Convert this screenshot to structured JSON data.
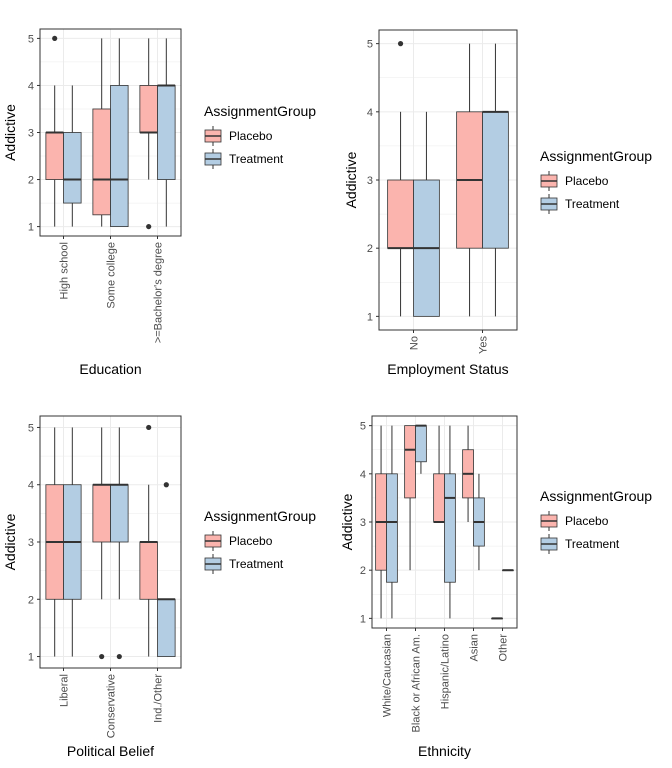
{
  "colors": {
    "placebo": "#FBB4AE",
    "treatment": "#B3CDE3",
    "grid": "#ebebeb",
    "border": "#333333"
  },
  "chart_data": [
    {
      "type": "boxplot",
      "xlabel": "Education",
      "ylabel": "Addictive",
      "ylim": [
        1,
        5
      ],
      "yticks": [
        1,
        2,
        3,
        4,
        5
      ],
      "categories": [
        "High school",
        "Some college",
        ">=Bachelor's degree"
      ],
      "legend": {
        "title": "AssignmentGroup",
        "entries": [
          "Placebo",
          "Treatment"
        ]
      },
      "series": [
        {
          "name": "Placebo",
          "boxes": [
            {
              "min": 1,
              "q1": 2,
              "median": 3,
              "q3": 3,
              "max": 4,
              "outliers": [
                5
              ]
            },
            {
              "min": 1,
              "q1": 1.25,
              "median": 2,
              "q3": 3.5,
              "max": 5,
              "outliers": []
            },
            {
              "min": 2,
              "q1": 3,
              "median": 3,
              "q3": 4,
              "max": 5,
              "outliers": [
                1
              ]
            }
          ]
        },
        {
          "name": "Treatment",
          "boxes": [
            {
              "min": 1,
              "q1": 1.5,
              "median": 2,
              "q3": 3,
              "max": 4,
              "outliers": []
            },
            {
              "min": 1,
              "q1": 1,
              "median": 2,
              "q3": 4,
              "max": 5,
              "outliers": []
            },
            {
              "min": 1,
              "q1": 2,
              "median": 4,
              "q3": 4,
              "max": 5,
              "outliers": []
            }
          ]
        }
      ]
    },
    {
      "type": "boxplot",
      "xlabel": "Employment Status",
      "ylabel": "Addictive",
      "ylim": [
        1,
        5
      ],
      "yticks": [
        1,
        2,
        3,
        4,
        5
      ],
      "categories": [
        "No",
        "Yes"
      ],
      "legend": {
        "title": "AssignmentGroup",
        "entries": [
          "Placebo",
          "Treatment"
        ]
      },
      "series": [
        {
          "name": "Placebo",
          "boxes": [
            {
              "min": 1,
              "q1": 2,
              "median": 2,
              "q3": 3,
              "max": 4,
              "outliers": [
                5
              ]
            },
            {
              "min": 1,
              "q1": 2,
              "median": 3,
              "q3": 4,
              "max": 5,
              "outliers": []
            }
          ]
        },
        {
          "name": "Treatment",
          "boxes": [
            {
              "min": 1,
              "q1": 1,
              "median": 2,
              "q3": 3,
              "max": 4,
              "outliers": []
            },
            {
              "min": 1,
              "q1": 2,
              "median": 4,
              "q3": 4,
              "max": 5,
              "outliers": []
            }
          ]
        }
      ]
    },
    {
      "type": "boxplot",
      "xlabel": "Political Belief",
      "ylabel": "Addictive",
      "ylim": [
        1,
        5
      ],
      "yticks": [
        1,
        2,
        3,
        4,
        5
      ],
      "categories": [
        "Liberal",
        "Conservative",
        "Ind./Other"
      ],
      "legend": {
        "title": "AssignmentGroup",
        "entries": [
          "Placebo",
          "Treatment"
        ]
      },
      "series": [
        {
          "name": "Placebo",
          "boxes": [
            {
              "min": 1,
              "q1": 2,
              "median": 3,
              "q3": 4,
              "max": 5,
              "outliers": []
            },
            {
              "min": 2,
              "q1": 3,
              "median": 4,
              "q3": 4,
              "max": 5,
              "outliers": [
                1
              ]
            },
            {
              "min": 1,
              "q1": 2,
              "median": 3,
              "q3": 3,
              "max": 4,
              "outliers": [
                5
              ]
            }
          ]
        },
        {
          "name": "Treatment",
          "boxes": [
            {
              "min": 1,
              "q1": 2,
              "median": 3,
              "q3": 4,
              "max": 5,
              "outliers": []
            },
            {
              "min": 2,
              "q1": 3,
              "median": 4,
              "q3": 4,
              "max": 5,
              "outliers": [
                1
              ]
            },
            {
              "min": 1,
              "q1": 1,
              "median": 2,
              "q3": 2,
              "max": 2,
              "outliers": [
                4
              ]
            }
          ]
        }
      ]
    },
    {
      "type": "boxplot",
      "xlabel": "Ethnicity",
      "ylabel": "Addictive",
      "ylim": [
        1,
        5
      ],
      "yticks": [
        1,
        2,
        3,
        4,
        5
      ],
      "categories": [
        "White/Caucasian",
        "Black or African Am.",
        "Hispanic/Latino",
        "Asian",
        "Other"
      ],
      "legend": {
        "title": "AssignmentGroup",
        "entries": [
          "Placebo",
          "Treatment"
        ]
      },
      "series": [
        {
          "name": "Placebo",
          "boxes": [
            {
              "min": 1,
              "q1": 2,
              "median": 3,
              "q3": 4,
              "max": 5,
              "outliers": []
            },
            {
              "min": 2,
              "q1": 3.5,
              "median": 4.5,
              "q3": 5,
              "max": 5,
              "outliers": []
            },
            {
              "min": 3,
              "q1": 3,
              "median": 3,
              "q3": 4,
              "max": 5,
              "outliers": []
            },
            {
              "min": 3,
              "q1": 3.5,
              "median": 4,
              "q3": 4.5,
              "max": 5,
              "outliers": []
            },
            {
              "min": 1,
              "q1": 1,
              "median": 1,
              "q3": 1,
              "max": 1,
              "outliers": []
            }
          ]
        },
        {
          "name": "Treatment",
          "boxes": [
            {
              "min": 1,
              "q1": 1.75,
              "median": 3,
              "q3": 4,
              "max": 5,
              "outliers": []
            },
            {
              "min": 4,
              "q1": 4.25,
              "median": 5,
              "q3": 5,
              "max": 5,
              "outliers": []
            },
            {
              "min": 1,
              "q1": 1.75,
              "median": 3.5,
              "q3": 4,
              "max": 5,
              "outliers": []
            },
            {
              "min": 2,
              "q1": 2.5,
              "median": 3,
              "q3": 3.5,
              "max": 4,
              "outliers": []
            },
            {
              "min": 2,
              "q1": 2,
              "median": 2,
              "q3": 2,
              "max": 2,
              "outliers": []
            }
          ]
        }
      ]
    }
  ]
}
